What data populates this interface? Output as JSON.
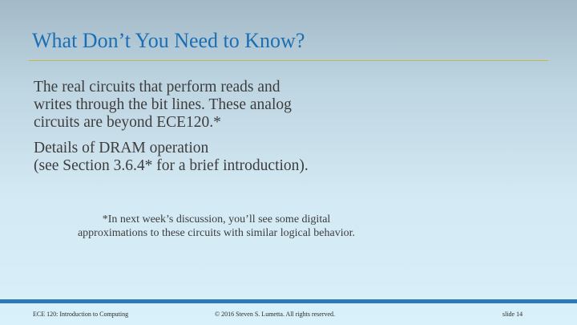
{
  "slide": {
    "title": "What Don’t You Need to Know?",
    "bullets": [
      {
        "lines": [
          "The real circuits that perform reads and",
          "writes through the bit lines.  These analog",
          "circuits are beyond ECE120.*"
        ]
      },
      {
        "lines": [
          "Details of DRAM operation",
          "(see Section 3.6.4* for a brief introduction)."
        ]
      }
    ],
    "footnote": {
      "lines": [
        "*In next week’s discussion, you’ll see some digital",
        "approximations to these circuits with similar logical behavior."
      ]
    }
  },
  "footer": {
    "course": "ECE 120: Introduction to Computing",
    "copyright": "© 2016 Steven S. Lumetta.  All rights reserved.",
    "slide_number": "slide 14"
  },
  "colors": {
    "title": "#1a6fb4",
    "rule": "#c8b54c",
    "footer_bar": "#2f78b9",
    "body_text": "#3d3d3d"
  }
}
